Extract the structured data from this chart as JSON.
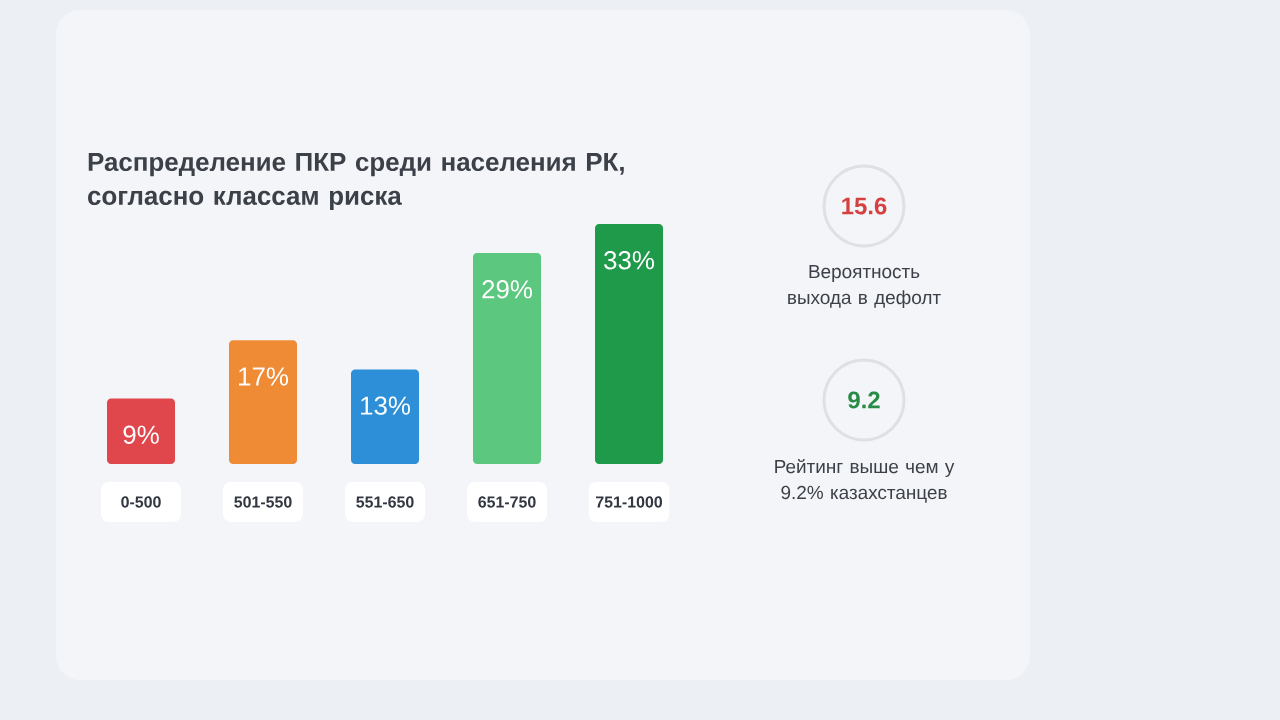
{
  "chart_data": [
    {
      "type": "bar",
      "title": "Распределение ПКР среди населения РК, согласно классам риска",
      "categories": [
        "0-500",
        "501-550",
        "551-650",
        "651-750",
        "751-1000"
      ],
      "values": [
        9,
        17,
        13,
        29,
        33
      ],
      "value_labels": [
        "9%",
        "17%",
        "13%",
        "29%",
        "33%"
      ],
      "colors": [
        "#e0474c",
        "#ef8a35",
        "#2d8fd8",
        "#5cc77f",
        "#1f9a4a"
      ]
    },
    {
      "type": "other",
      "annotations": [
        "15.6",
        "Вероятность выхода в дефолт",
        "9.2",
        "Рейтинг выше чем у 9.2% казахстанцев"
      ]
    }
  ]
}
